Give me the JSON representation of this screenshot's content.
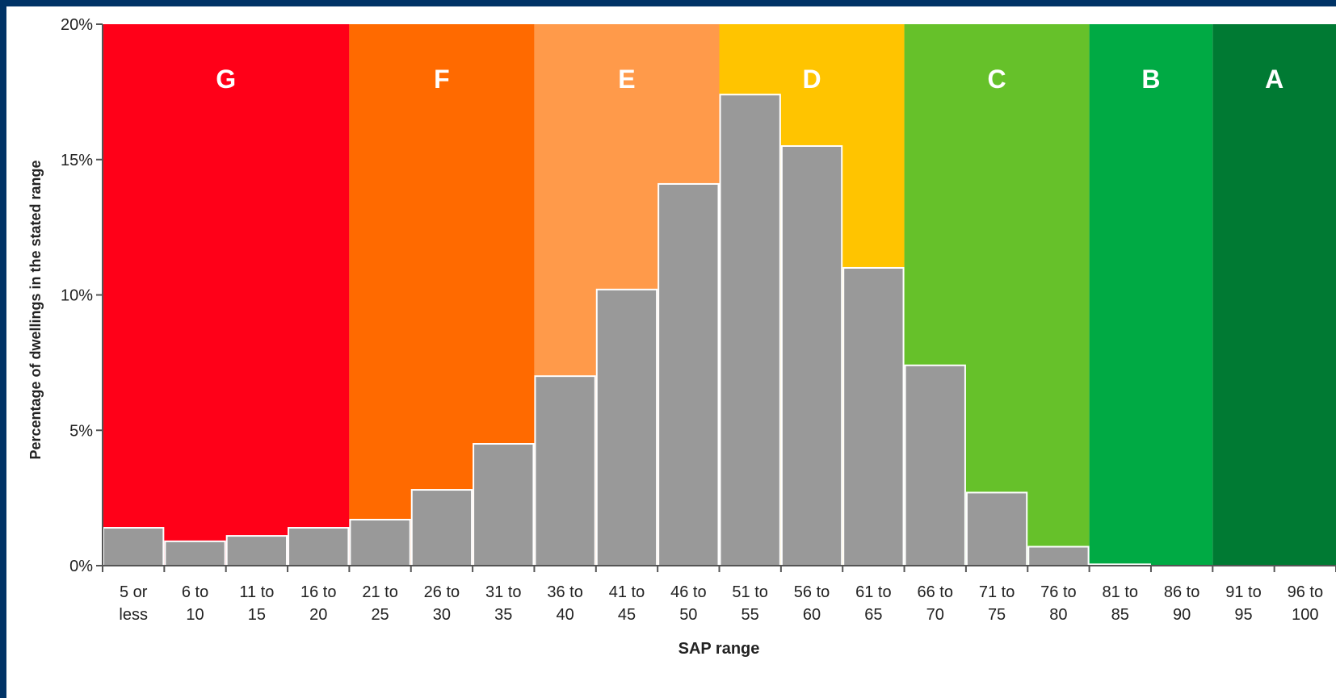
{
  "chart_data": {
    "type": "bar",
    "xlabel": "SAP range",
    "ylabel": "Percentage of dwellings in the stated range",
    "ylim": [
      0,
      20
    ],
    "yticks": [
      "0%",
      "5%",
      "10%",
      "15%",
      "20%"
    ],
    "categories": [
      [
        "5 or",
        "less"
      ],
      [
        "6 to",
        "10"
      ],
      [
        "11 to",
        "15"
      ],
      [
        "16 to",
        "20"
      ],
      [
        "21 to",
        "25"
      ],
      [
        "26 to",
        "30"
      ],
      [
        "31 to",
        "35"
      ],
      [
        "36 to",
        "40"
      ],
      [
        "41 to",
        "45"
      ],
      [
        "46 to",
        "50"
      ],
      [
        "51 to",
        "55"
      ],
      [
        "56 to",
        "60"
      ],
      [
        "61 to",
        "65"
      ],
      [
        "66 to",
        "70"
      ],
      [
        "71 to",
        "75"
      ],
      [
        "76 to",
        "80"
      ],
      [
        "81 to",
        "85"
      ],
      [
        "86 to",
        "90"
      ],
      [
        "91 to",
        "95"
      ],
      [
        "96 to",
        "100"
      ]
    ],
    "values": [
      1.4,
      0.9,
      1.1,
      1.4,
      1.7,
      2.8,
      4.5,
      7.0,
      10.2,
      14.1,
      17.4,
      15.5,
      11.0,
      7.4,
      2.7,
      0.7,
      0.05,
      0,
      0,
      0
    ],
    "bar_color": "#999999",
    "bands": [
      {
        "label": "G",
        "from": 0,
        "to": 4,
        "color": "#ff0018"
      },
      {
        "label": "F",
        "from": 4,
        "to": 7,
        "color": "#ff6a00"
      },
      {
        "label": "E",
        "from": 7,
        "to": 10,
        "color": "#ff9a4a"
      },
      {
        "label": "D",
        "from": 10,
        "to": 13,
        "color": "#ffc400"
      },
      {
        "label": "C",
        "from": 13,
        "to": 16,
        "color": "#66c12a"
      },
      {
        "label": "B",
        "from": 16,
        "to": 18,
        "color": "#00aa44"
      },
      {
        "label": "A",
        "from": 18,
        "to": 20,
        "color": "#007a33"
      }
    ]
  }
}
